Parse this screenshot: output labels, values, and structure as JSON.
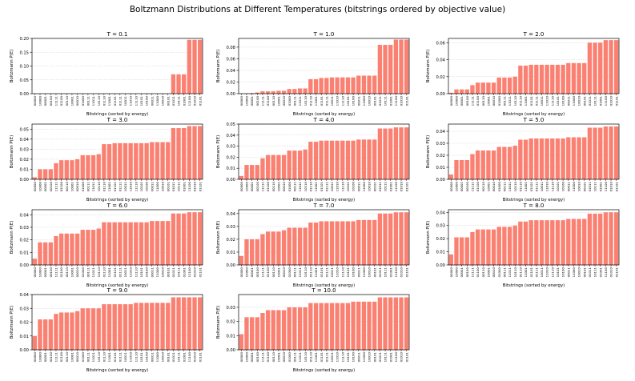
{
  "figure_title": "Boltzmann Distributions at Different Temperatures (bitstrings ordered by objective value)",
  "colors": {
    "bar": "#fa8072",
    "bar_edge": "#e8705f",
    "grid": "#d9d9d9",
    "axis": "#000000"
  },
  "chart_data": [
    {
      "type": "bar",
      "title": "T = 0.1",
      "xlabel": "Bitstrings (sorted by energy)",
      "ylabel": "Boltzmann P(E)",
      "categories": [
        "00000",
        "10000",
        "00001",
        "00100",
        "11111",
        "01100",
        "00110",
        "10001",
        "00010",
        "01000",
        "00111",
        "11011",
        "10110",
        "01110",
        "11001",
        "01101",
        "01111",
        "10011",
        "11010",
        "11110",
        "10101",
        "10100",
        "00011",
        "11000",
        "10010",
        "00101",
        "01011",
        "10111",
        "01001",
        "11100",
        "01010",
        "01101"
      ],
      "values": [
        0,
        0,
        0,
        0,
        0,
        0,
        0,
        0,
        0,
        0,
        0,
        0,
        0,
        0,
        0,
        0,
        0,
        0,
        0,
        0,
        0,
        0,
        0,
        0,
        0,
        0,
        0.07,
        0.07,
        0.07,
        0.195,
        0.195,
        0.195
      ],
      "ylim": [
        0,
        0.2
      ],
      "yticks": [
        0.0,
        0.05,
        0.1,
        0.15,
        0.2
      ],
      "ytick_labels": [
        "0.00",
        "0.05",
        "0.10",
        "0.15",
        "0.20"
      ]
    },
    {
      "type": "bar",
      "title": "T = 1.0",
      "xlabel": "Bitstrings (sorted by energy)",
      "ylabel": "Boltzmann P(E)",
      "categories": [
        "00000",
        "10000",
        "00001",
        "00100",
        "11111",
        "01100",
        "00110",
        "10001",
        "00010",
        "01000",
        "00111",
        "11011",
        "10110",
        "01110",
        "11001",
        "01101",
        "01111",
        "10011",
        "11010",
        "11110",
        "10101",
        "10100",
        "00011",
        "11000",
        "10010",
        "00101",
        "01011",
        "10111",
        "01001",
        "11100",
        "01010",
        "01101"
      ],
      "values": [
        0.0005,
        0.0005,
        0.001,
        0.002,
        0.004,
        0.004,
        0.004,
        0.005,
        0.005,
        0.008,
        0.008,
        0.009,
        0.009,
        0.025,
        0.025,
        0.027,
        0.027,
        0.028,
        0.028,
        0.028,
        0.028,
        0.028,
        0.031,
        0.031,
        0.031,
        0.031,
        0.084,
        0.084,
        0.084,
        0.093,
        0.093,
        0.093
      ],
      "ylim": [
        0,
        0.095
      ],
      "yticks": [
        0.0,
        0.02,
        0.04,
        0.06,
        0.08
      ],
      "ytick_labels": [
        "0.00",
        "0.02",
        "0.04",
        "0.06",
        "0.08"
      ]
    },
    {
      "type": "bar",
      "title": "T = 2.0",
      "xlabel": "Bitstrings (sorted by energy)",
      "ylabel": "Boltzmann P(E)",
      "categories": [
        "00000",
        "10000",
        "00001",
        "00100",
        "11111",
        "01100",
        "00110",
        "10001",
        "00010",
        "01000",
        "00111",
        "11011",
        "10110",
        "01110",
        "11001",
        "01101",
        "01111",
        "10011",
        "11010",
        "11110",
        "10101",
        "10100",
        "00011",
        "11000",
        "10010",
        "00101",
        "01011",
        "10111",
        "01001",
        "11100",
        "01010",
        "01101"
      ],
      "values": [
        0.001,
        0.005,
        0.005,
        0.005,
        0.01,
        0.013,
        0.013,
        0.013,
        0.013,
        0.019,
        0.019,
        0.019,
        0.02,
        0.033,
        0.033,
        0.034,
        0.034,
        0.034,
        0.034,
        0.034,
        0.034,
        0.034,
        0.036,
        0.036,
        0.036,
        0.036,
        0.06,
        0.06,
        0.06,
        0.063,
        0.063,
        0.063
      ],
      "ylim": [
        0,
        0.065
      ],
      "yticks": [
        0.0,
        0.02,
        0.04,
        0.06
      ],
      "ytick_labels": [
        "0.00",
        "0.02",
        "0.04",
        "0.06"
      ]
    },
    {
      "type": "bar",
      "title": "T = 3.0",
      "xlabel": "Bitstrings (sorted by energy)",
      "ylabel": "Boltzmann P(E)",
      "categories": [
        "00000",
        "10000",
        "00001",
        "00100",
        "11111",
        "01100",
        "00110",
        "10001",
        "00010",
        "01000",
        "00111",
        "11011",
        "10110",
        "01110",
        "11001",
        "01101",
        "01111",
        "10011",
        "11010",
        "11110",
        "10101",
        "10100",
        "00011",
        "11000",
        "10010",
        "00101",
        "01011",
        "10111",
        "01001",
        "11100",
        "01010",
        "01101"
      ],
      "values": [
        0.002,
        0.01,
        0.01,
        0.01,
        0.016,
        0.019,
        0.019,
        0.019,
        0.02,
        0.024,
        0.024,
        0.024,
        0.025,
        0.035,
        0.035,
        0.036,
        0.036,
        0.036,
        0.036,
        0.036,
        0.036,
        0.036,
        0.037,
        0.037,
        0.037,
        0.037,
        0.051,
        0.051,
        0.051,
        0.053,
        0.053,
        0.053
      ],
      "ylim": [
        0,
        0.055
      ],
      "yticks": [
        0.0,
        0.01,
        0.02,
        0.03,
        0.04,
        0.05
      ],
      "ytick_labels": [
        "0.00",
        "0.01",
        "0.02",
        "0.03",
        "0.04",
        "0.05"
      ]
    },
    {
      "type": "bar",
      "title": "T = 4.0",
      "xlabel": "Bitstrings (sorted by energy)",
      "ylabel": "Boltzmann P(E)",
      "categories": [
        "00000",
        "10000",
        "00001",
        "00100",
        "11111",
        "01100",
        "00110",
        "10001",
        "00010",
        "01000",
        "00111",
        "11011",
        "10110",
        "01110",
        "11001",
        "01101",
        "01111",
        "10011",
        "11010",
        "11110",
        "10101",
        "10100",
        "00011",
        "11000",
        "10010",
        "00101",
        "01011",
        "10111",
        "01001",
        "11100",
        "01010",
        "01101"
      ],
      "values": [
        0.003,
        0.013,
        0.013,
        0.013,
        0.019,
        0.022,
        0.022,
        0.022,
        0.022,
        0.026,
        0.026,
        0.026,
        0.027,
        0.034,
        0.034,
        0.035,
        0.035,
        0.035,
        0.035,
        0.035,
        0.035,
        0.035,
        0.036,
        0.036,
        0.036,
        0.036,
        0.046,
        0.046,
        0.046,
        0.047,
        0.047,
        0.047
      ],
      "ylim": [
        0,
        0.05
      ],
      "yticks": [
        0.0,
        0.01,
        0.02,
        0.03,
        0.04,
        0.05
      ],
      "ytick_labels": [
        "0.00",
        "0.01",
        "0.02",
        "0.03",
        "0.04",
        "0.05"
      ]
    },
    {
      "type": "bar",
      "title": "T = 5.0",
      "xlabel": "Bitstrings (sorted by energy)",
      "ylabel": "Boltzmann P(E)",
      "categories": [
        "00000",
        "10000",
        "00001",
        "00100",
        "11111",
        "01100",
        "00110",
        "10001",
        "00010",
        "01000",
        "00111",
        "11011",
        "10110",
        "01110",
        "11001",
        "01101",
        "01111",
        "10011",
        "11010",
        "11110",
        "10101",
        "10100",
        "00011",
        "11000",
        "10010",
        "00101",
        "01011",
        "10111",
        "01001",
        "11100",
        "01010",
        "01101"
      ],
      "values": [
        0.004,
        0.016,
        0.016,
        0.016,
        0.021,
        0.024,
        0.024,
        0.024,
        0.024,
        0.027,
        0.027,
        0.027,
        0.028,
        0.033,
        0.033,
        0.034,
        0.034,
        0.034,
        0.034,
        0.034,
        0.034,
        0.034,
        0.035,
        0.035,
        0.035,
        0.035,
        0.043,
        0.043,
        0.043,
        0.044,
        0.044,
        0.044
      ],
      "ylim": [
        0,
        0.046
      ],
      "yticks": [
        0.0,
        0.01,
        0.02,
        0.03,
        0.04
      ],
      "ytick_labels": [
        "0.00",
        "0.01",
        "0.02",
        "0.03",
        "0.04"
      ]
    },
    {
      "type": "bar",
      "title": "T = 6.0",
      "xlabel": "Bitstrings (sorted by energy)",
      "ylabel": "Boltzmann P(E)",
      "categories": [
        "00000",
        "10000",
        "00001",
        "00100",
        "11111",
        "01100",
        "00110",
        "10001",
        "00010",
        "01000",
        "00111",
        "11011",
        "10110",
        "01110",
        "11001",
        "01101",
        "01111",
        "10011",
        "11010",
        "11110",
        "10101",
        "10100",
        "00011",
        "11000",
        "10010",
        "00101",
        "01011",
        "10111",
        "01001",
        "11100",
        "01010",
        "01101"
      ],
      "values": [
        0.005,
        0.018,
        0.018,
        0.018,
        0.023,
        0.025,
        0.025,
        0.025,
        0.025,
        0.028,
        0.028,
        0.028,
        0.029,
        0.034,
        0.034,
        0.034,
        0.034,
        0.034,
        0.034,
        0.034,
        0.034,
        0.034,
        0.035,
        0.035,
        0.035,
        0.035,
        0.041,
        0.041,
        0.041,
        0.042,
        0.042,
        0.042
      ],
      "ylim": [
        0,
        0.044
      ],
      "yticks": [
        0.0,
        0.01,
        0.02,
        0.03,
        0.04
      ],
      "ytick_labels": [
        "0.00",
        "0.01",
        "0.02",
        "0.03",
        "0.04"
      ]
    },
    {
      "type": "bar",
      "title": "T = 7.0",
      "xlabel": "Bitstrings (sorted by energy)",
      "ylabel": "Boltzmann P(E)",
      "categories": [
        "00000",
        "10000",
        "00001",
        "00100",
        "11111",
        "01100",
        "00110",
        "10001",
        "00010",
        "01000",
        "00111",
        "11011",
        "10110",
        "01110",
        "11001",
        "01101",
        "01111",
        "10011",
        "11010",
        "11110",
        "10101",
        "10100",
        "00011",
        "11000",
        "10010",
        "00101",
        "01011",
        "10111",
        "01001",
        "11100",
        "01010",
        "01101"
      ],
      "values": [
        0.007,
        0.02,
        0.02,
        0.02,
        0.024,
        0.026,
        0.026,
        0.026,
        0.027,
        0.029,
        0.029,
        0.029,
        0.029,
        0.033,
        0.033,
        0.034,
        0.034,
        0.034,
        0.034,
        0.034,
        0.034,
        0.034,
        0.035,
        0.035,
        0.035,
        0.035,
        0.04,
        0.04,
        0.04,
        0.041,
        0.041,
        0.041
      ],
      "ylim": [
        0,
        0.043
      ],
      "yticks": [
        0.0,
        0.01,
        0.02,
        0.03,
        0.04
      ],
      "ytick_labels": [
        "0.00",
        "0.01",
        "0.02",
        "0.03",
        "0.04"
      ]
    },
    {
      "type": "bar",
      "title": "T = 8.0",
      "xlabel": "Bitstrings (sorted by energy)",
      "ylabel": "Boltzmann P(E)",
      "categories": [
        "00000",
        "10000",
        "00001",
        "00100",
        "11111",
        "01100",
        "00110",
        "10001",
        "00010",
        "01000",
        "00111",
        "11011",
        "10110",
        "01110",
        "11001",
        "01101",
        "01111",
        "10011",
        "11010",
        "11110",
        "10101",
        "10100",
        "00011",
        "11000",
        "10010",
        "00101",
        "01011",
        "10111",
        "01001",
        "11100",
        "01010",
        "01101"
      ],
      "values": [
        0.008,
        0.021,
        0.021,
        0.021,
        0.025,
        0.027,
        0.027,
        0.027,
        0.027,
        0.029,
        0.029,
        0.029,
        0.03,
        0.033,
        0.033,
        0.034,
        0.034,
        0.034,
        0.034,
        0.034,
        0.034,
        0.034,
        0.035,
        0.035,
        0.035,
        0.035,
        0.039,
        0.039,
        0.039,
        0.04,
        0.04,
        0.04
      ],
      "ylim": [
        0,
        0.042
      ],
      "yticks": [
        0.0,
        0.01,
        0.02,
        0.03,
        0.04
      ],
      "ytick_labels": [
        "0.00",
        "0.01",
        "0.02",
        "0.03",
        "0.04"
      ]
    },
    {
      "type": "bar",
      "title": "T = 9.0",
      "xlabel": "Bitstrings (sorted by energy)",
      "ylabel": "Boltzmann P(E)",
      "categories": [
        "00000",
        "10000",
        "00001",
        "00100",
        "11111",
        "01100",
        "00110",
        "10001",
        "00010",
        "01000",
        "00111",
        "11011",
        "10110",
        "01110",
        "11001",
        "01101",
        "01111",
        "10011",
        "11010",
        "11110",
        "10101",
        "10100",
        "00011",
        "11000",
        "10010",
        "00101",
        "01011",
        "10111",
        "01001",
        "11100",
        "01010",
        "01101"
      ],
      "values": [
        0.01,
        0.022,
        0.022,
        0.022,
        0.026,
        0.027,
        0.027,
        0.027,
        0.028,
        0.03,
        0.03,
        0.03,
        0.03,
        0.033,
        0.033,
        0.033,
        0.033,
        0.033,
        0.033,
        0.034,
        0.034,
        0.034,
        0.034,
        0.034,
        0.034,
        0.034,
        0.038,
        0.038,
        0.038,
        0.038,
        0.038,
        0.038
      ],
      "ylim": [
        0,
        0.04
      ],
      "yticks": [
        0.0,
        0.01,
        0.02,
        0.03,
        0.04
      ],
      "ytick_labels": [
        "0.00",
        "0.01",
        "0.02",
        "0.03",
        "0.04"
      ]
    },
    {
      "type": "bar",
      "title": "T = 10.0",
      "xlabel": "Bitstrings (sorted by energy)",
      "ylabel": "Boltzmann P(E)",
      "categories": [
        "00000",
        "10000",
        "00001",
        "00100",
        "11111",
        "01100",
        "00110",
        "10001",
        "00010",
        "01000",
        "00111",
        "11011",
        "10110",
        "01110",
        "11001",
        "01101",
        "01111",
        "10011",
        "11010",
        "11110",
        "10101",
        "10100",
        "00011",
        "11000",
        "10010",
        "00101",
        "01011",
        "10111",
        "01001",
        "11100",
        "01010",
        "01101"
      ],
      "values": [
        0.011,
        0.023,
        0.023,
        0.023,
        0.026,
        0.028,
        0.028,
        0.028,
        0.028,
        0.03,
        0.03,
        0.03,
        0.03,
        0.033,
        0.033,
        0.033,
        0.033,
        0.033,
        0.033,
        0.033,
        0.033,
        0.034,
        0.034,
        0.034,
        0.034,
        0.034,
        0.037,
        0.037,
        0.037,
        0.037,
        0.037,
        0.037
      ],
      "ylim": [
        0,
        0.039
      ],
      "yticks": [
        0.0,
        0.01,
        0.02,
        0.03
      ],
      "ytick_labels": [
        "0.00",
        "0.01",
        "0.02",
        "0.03"
      ]
    }
  ]
}
